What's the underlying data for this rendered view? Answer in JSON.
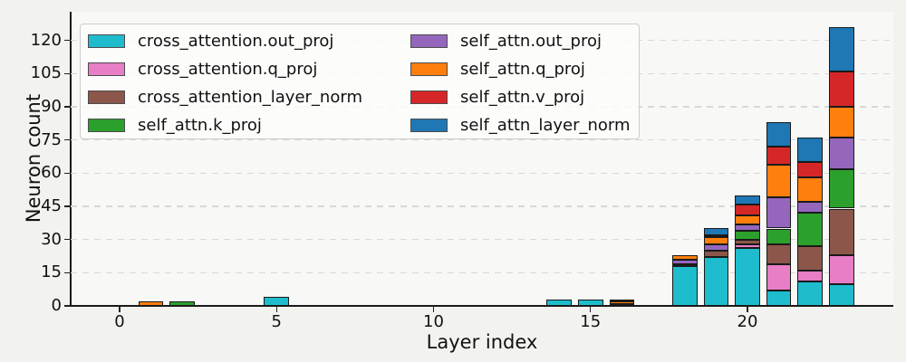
{
  "chart_data": {
    "type": "bar",
    "stacked": true,
    "xlabel": "Layer index",
    "ylabel": "Neuron count",
    "x": [
      0,
      1,
      2,
      3,
      4,
      5,
      6,
      7,
      8,
      9,
      10,
      11,
      12,
      13,
      14,
      15,
      16,
      17,
      18,
      19,
      20,
      21,
      22,
      23
    ],
    "series": [
      {
        "name": "cross_attention.out_proj",
        "color": "#1ebccd",
        "values": [
          0,
          0,
          0,
          0,
          0,
          4,
          0,
          0,
          0,
          0,
          0,
          0,
          0,
          0,
          3,
          3,
          0,
          0,
          18,
          22,
          26,
          7,
          11,
          10
        ]
      },
      {
        "name": "cross_attention.q_proj",
        "color": "#e77ec6",
        "values": [
          0,
          0,
          0,
          0,
          0,
          0,
          0,
          0,
          0,
          0,
          0,
          0,
          0,
          0,
          0,
          0,
          0,
          0,
          0,
          0,
          2,
          12,
          5,
          13
        ]
      },
      {
        "name": "cross_attention_layer_norm",
        "color": "#8c564b",
        "values": [
          0,
          0,
          0,
          0,
          0,
          0,
          0,
          0,
          0,
          0,
          0,
          0,
          0,
          0,
          0,
          0,
          0,
          0,
          0,
          3,
          2,
          9,
          11,
          21
        ]
      },
      {
        "name": "self_attn.k_proj",
        "color": "#2ca02c",
        "values": [
          0,
          0,
          2,
          0,
          0,
          0,
          0,
          0,
          0,
          0,
          0,
          0,
          0,
          0,
          0,
          0,
          1,
          0,
          1,
          0,
          4,
          7,
          15,
          18
        ]
      },
      {
        "name": "self_attn.out_proj",
        "color": "#9467bd",
        "values": [
          0,
          0,
          0,
          0,
          0,
          0,
          0,
          0,
          0,
          0,
          0,
          0,
          0,
          0,
          0,
          0,
          0,
          0,
          2,
          3,
          3,
          14,
          5,
          14
        ]
      },
      {
        "name": "self_attn.q_proj",
        "color": "#ff7f0e",
        "values": [
          0,
          2,
          0,
          0,
          0,
          0,
          0,
          0,
          0,
          0,
          0,
          0,
          0,
          0,
          0,
          0,
          1,
          0,
          2,
          3,
          4,
          15,
          11,
          14
        ]
      },
      {
        "name": "self_attn.v_proj",
        "color": "#d62728",
        "values": [
          0,
          0,
          0,
          0,
          0,
          0,
          0,
          0,
          0,
          0,
          0,
          0,
          0,
          0,
          0,
          0,
          1,
          0,
          0,
          1,
          5,
          8,
          7,
          16
        ]
      },
      {
        "name": "self_attn_layer_norm",
        "color": "#1f77b4",
        "values": [
          0,
          0,
          0,
          0,
          0,
          0,
          0,
          0,
          0,
          0,
          0,
          0,
          0,
          0,
          0,
          0,
          0,
          0,
          0,
          3,
          4,
          11,
          11,
          20
        ]
      }
    ],
    "xticks": [
      0,
      5,
      10,
      15,
      20
    ],
    "yticks": [
      0,
      15,
      30,
      45,
      60,
      75,
      90,
      105,
      120
    ],
    "ylim": [
      0,
      133
    ],
    "xlim": [
      -1.56,
      24.65
    ],
    "grid": "horizontal-dashed",
    "legend": {
      "position": "upper left",
      "ncols": 2,
      "entries": [
        "cross_attention.out_proj",
        "cross_attention.q_proj",
        "cross_attention_layer_norm",
        "self_attn.k_proj",
        "self_attn.out_proj",
        "self_attn.q_proj",
        "self_attn.v_proj",
        "self_attn_layer_norm"
      ]
    }
  },
  "colors": {
    "bar_edge": "#1a1a1a",
    "grid": "#d8d8d8",
    "figure_bg": "#f2f2ef",
    "axes_bg": "#f8f8f6",
    "legend_border": "#cccccc",
    "spine": "#1a1a1a",
    "text": "#111111"
  }
}
